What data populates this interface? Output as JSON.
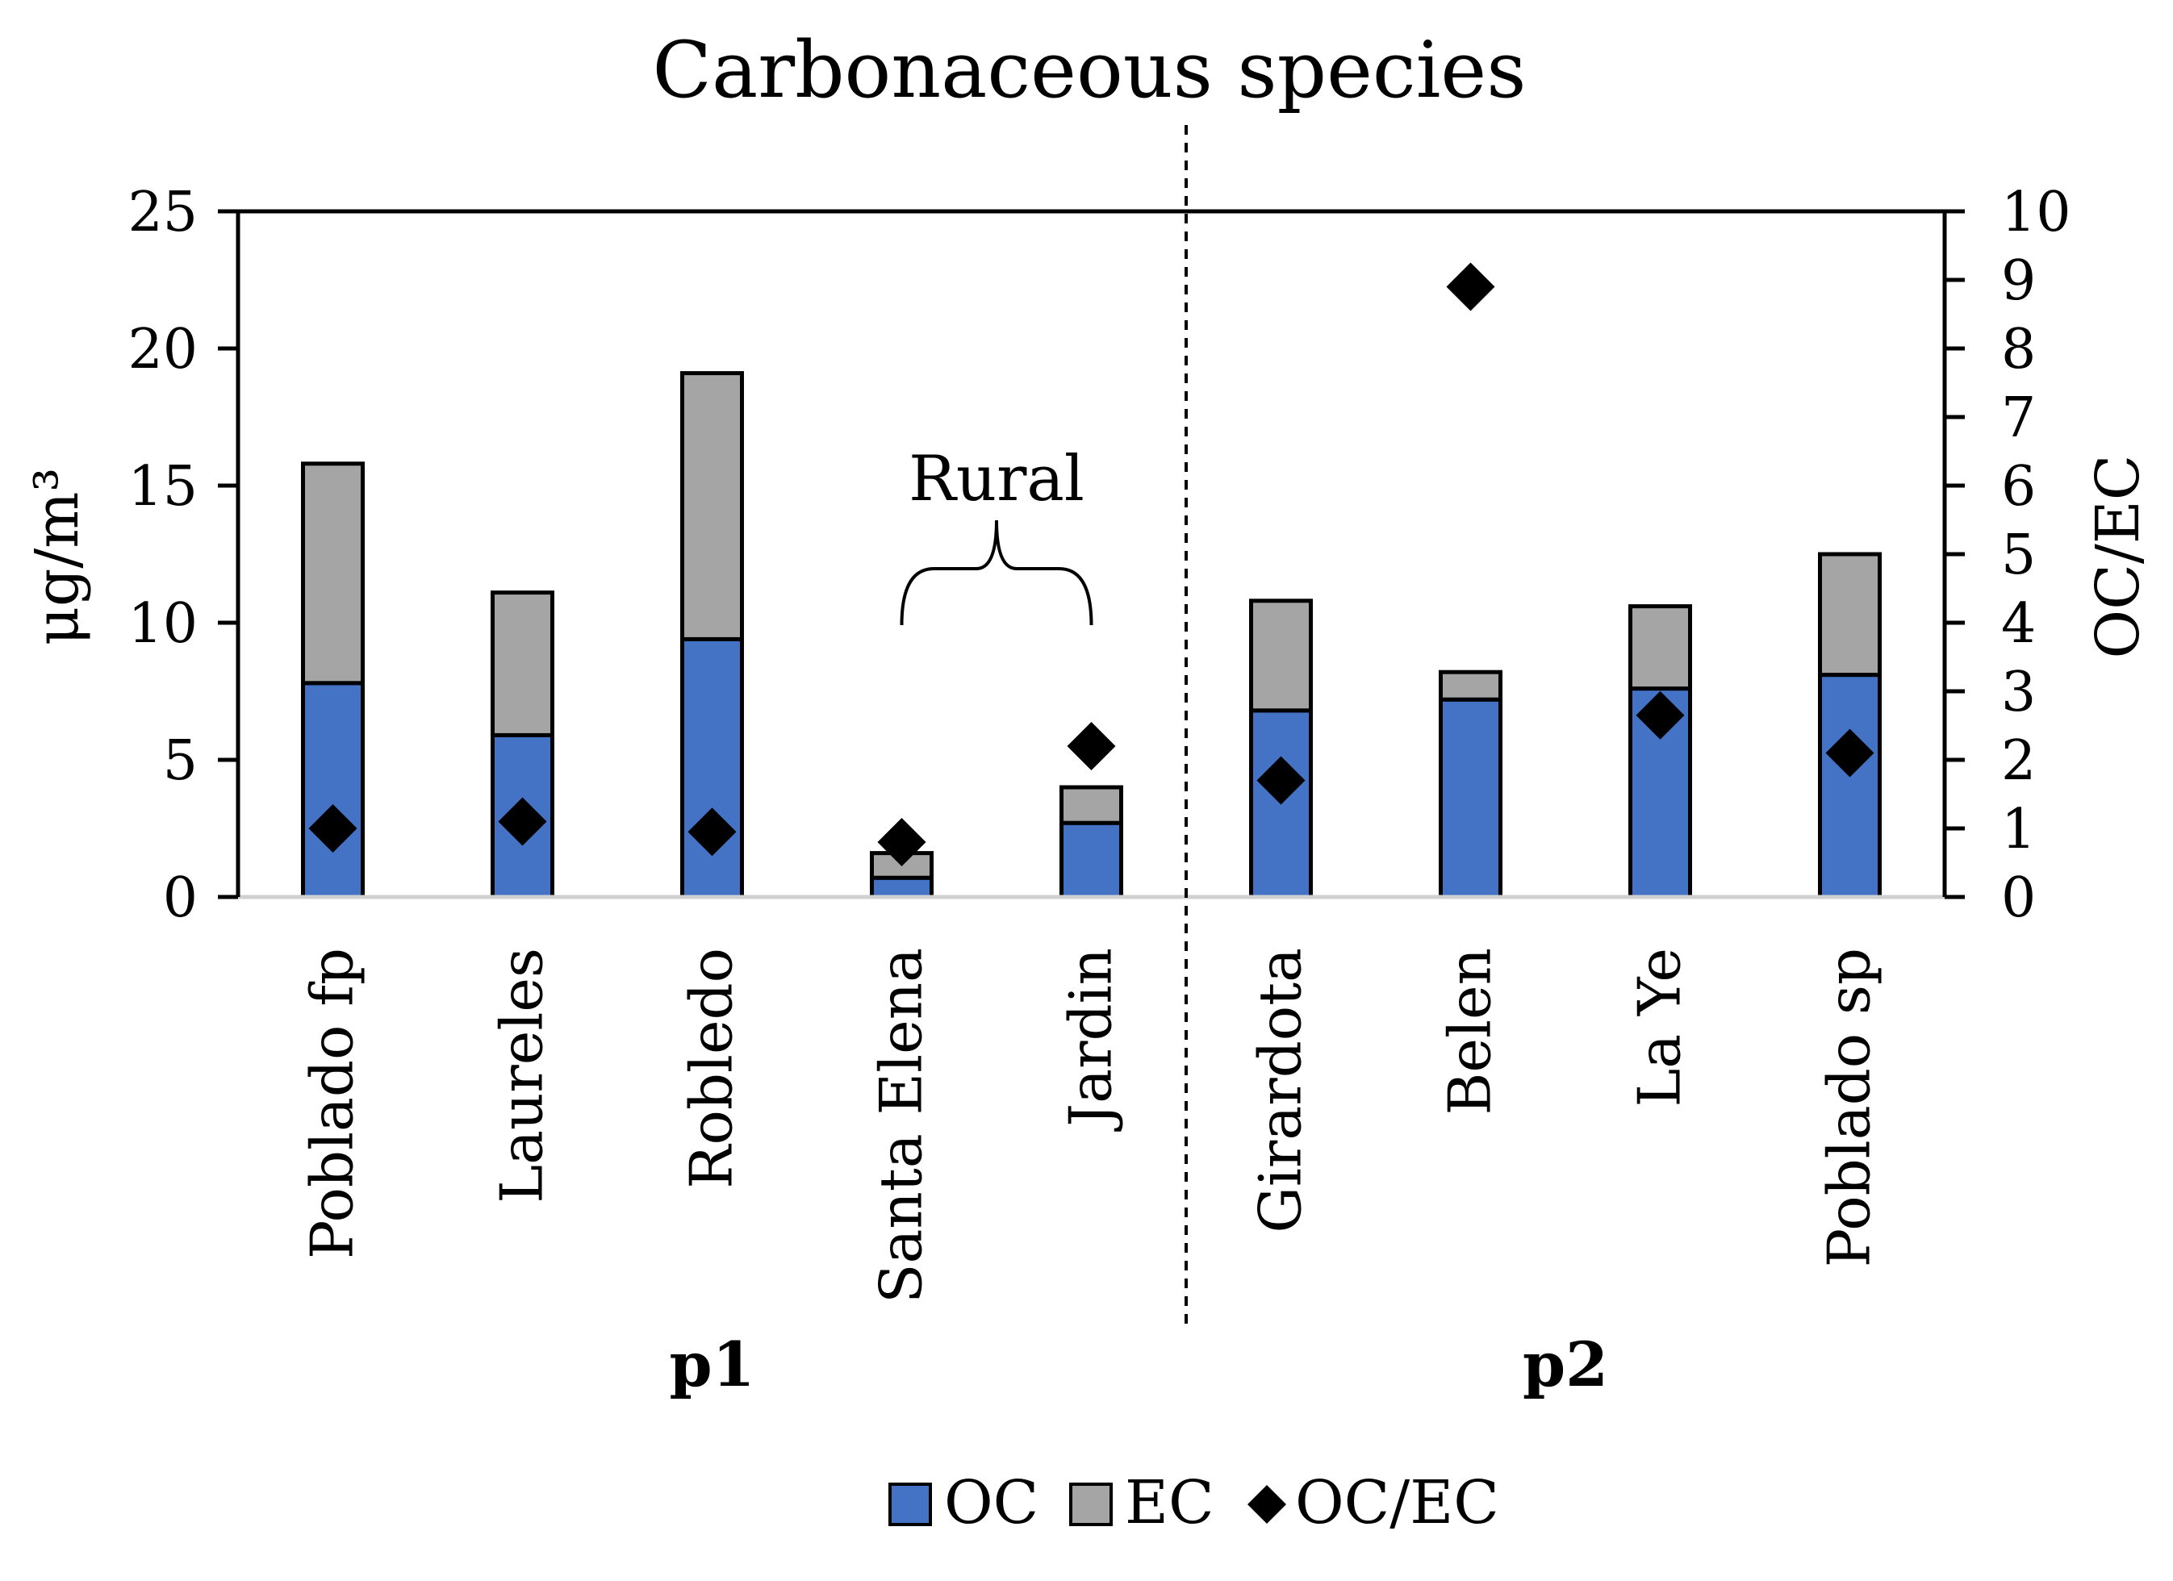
{
  "chart_data": {
    "type": "bar",
    "stacked": true,
    "title": "Carbonaceous species",
    "ylabel": "μg/m³",
    "y2label": "OC/EC",
    "ylim": [
      0,
      25
    ],
    "y2lim": [
      0,
      10
    ],
    "yticks": [
      "0",
      "5",
      "10",
      "15",
      "20",
      "25"
    ],
    "y2ticks": [
      "0",
      "1",
      "2",
      "3",
      "4",
      "5",
      "6",
      "7",
      "8",
      "9",
      "10"
    ],
    "categories": [
      "Poblado fp",
      "Laureles",
      "Robledo",
      "Santa Elena",
      "Jardin",
      "Girardota",
      "Belen",
      "La Ye",
      "Poblado sp"
    ],
    "series": [
      {
        "name": "OC",
        "type": "bar",
        "axis": "left",
        "color": "#4472C4",
        "values": [
          7.8,
          5.9,
          9.4,
          0.7,
          2.7,
          6.8,
          7.2,
          7.6,
          8.1
        ]
      },
      {
        "name": "EC",
        "type": "bar",
        "axis": "left",
        "color": "#A5A5A5",
        "values": [
          8.0,
          5.2,
          9.7,
          0.9,
          1.3,
          4.0,
          1.0,
          3.0,
          4.4
        ]
      },
      {
        "name": "OC/EC",
        "type": "scatter",
        "axis": "right",
        "marker": "diamond",
        "color": "#000000",
        "values": [
          1.0,
          1.1,
          0.95,
          0.8,
          2.2,
          1.7,
          8.9,
          2.65,
          2.1
        ]
      }
    ],
    "groups": [
      {
        "label": "p1",
        "from": 0,
        "to": 4
      },
      {
        "label": "p2",
        "from": 5,
        "to": 8
      }
    ],
    "divider_after_index": 4,
    "annotation": {
      "text": "Rural",
      "from": 3,
      "to": 4
    },
    "legend": {
      "position": "bottom",
      "entries": [
        "OC",
        "EC",
        "OC/EC"
      ]
    }
  }
}
